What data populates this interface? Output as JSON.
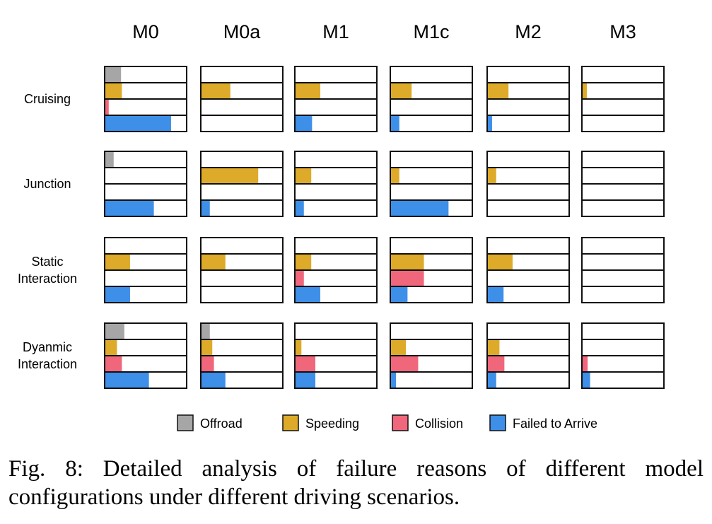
{
  "chart_data": {
    "type": "bar",
    "models": [
      "M0",
      "M0a",
      "M1",
      "M1c",
      "M2",
      "M3"
    ],
    "scenarios": [
      {
        "lines": [
          "Cruising"
        ]
      },
      {
        "lines": [
          "Junction"
        ]
      },
      {
        "lines": [
          "Static",
          "Interaction"
        ]
      },
      {
        "lines": [
          "Dyanmic",
          "Interaction"
        ]
      }
    ],
    "series": [
      {
        "name": "Offroad",
        "color": "#a6a6a6"
      },
      {
        "name": "Speeding",
        "color": "#ddaa2a"
      },
      {
        "name": "Collision",
        "color": "#f0677c"
      },
      {
        "name": "Failed to Arrive",
        "color": "#3d8fe8"
      }
    ],
    "xlim": [
      0,
      1
    ],
    "values": [
      [
        [
          0.2,
          0.21,
          0.05,
          0.81
        ],
        [
          0.0,
          0.36,
          0.0,
          0.0
        ],
        [
          0.0,
          0.31,
          0.0,
          0.21
        ],
        [
          0.0,
          0.26,
          0.0,
          0.11
        ],
        [
          0.01,
          0.26,
          0.0,
          0.06
        ],
        [
          0.0,
          0.06,
          0.0,
          0.0
        ]
      ],
      [
        [
          0.11,
          0.0,
          0.0,
          0.6
        ],
        [
          0.0,
          0.7,
          0.0,
          0.11
        ],
        [
          0.0,
          0.2,
          0.0,
          0.11
        ],
        [
          0.0,
          0.11,
          0.0,
          0.71
        ],
        [
          0.0,
          0.11,
          0.0,
          0.0
        ],
        [
          0.0,
          0.0,
          0.0,
          0.0
        ]
      ],
      [
        [
          0.0,
          0.31,
          0.0,
          0.31
        ],
        [
          0.0,
          0.3,
          0.0,
          0.0
        ],
        [
          0.0,
          0.2,
          0.11,
          0.31
        ],
        [
          0.0,
          0.41,
          0.41,
          0.21
        ],
        [
          0.01,
          0.31,
          0.0,
          0.2
        ],
        [
          0.0,
          0.0,
          0.0,
          0.0
        ]
      ],
      [
        [
          0.24,
          0.15,
          0.21,
          0.54
        ],
        [
          0.11,
          0.14,
          0.16,
          0.3
        ],
        [
          0.0,
          0.08,
          0.25,
          0.25
        ],
        [
          0.0,
          0.19,
          0.34,
          0.07
        ],
        [
          0.0,
          0.15,
          0.21,
          0.11
        ],
        [
          0.0,
          0.0,
          0.07,
          0.1
        ]
      ]
    ]
  },
  "caption": "Fig. 8: Detailed analysis of failure reasons of different model configurations under different driving scenarios."
}
